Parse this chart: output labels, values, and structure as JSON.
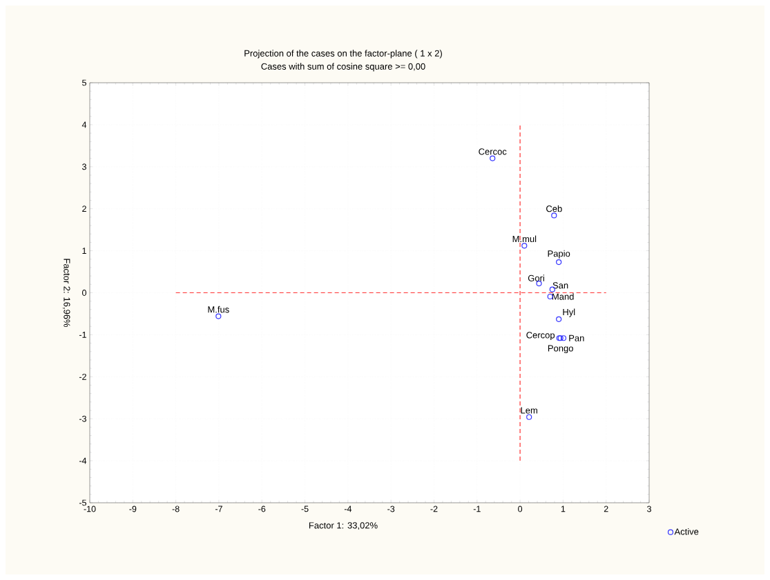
{
  "chart_data": {
    "type": "scatter",
    "title": "Projection of the cases on the factor-plane (  1 x   2)",
    "subtitle": "Cases with sum of cosine square >=  0,00",
    "xlabel": "Factor 1: 33,02%",
    "ylabel": "Factor 2: 16,96%",
    "xlim": [
      -10,
      3
    ],
    "ylim": [
      -5,
      5
    ],
    "xticks": [
      -10,
      -9,
      -8,
      -7,
      -6,
      -5,
      -4,
      -3,
      -2,
      -1,
      0,
      1,
      2,
      3
    ],
    "yticks": [
      -5,
      -4,
      -3,
      -2,
      -1,
      0,
      1,
      2,
      3,
      4,
      5
    ],
    "grid": true,
    "legend": "bottom right",
    "marker": "circle",
    "series": [
      {
        "type": "line",
        "color": "#ff3030",
        "line_style": "dashed",
        "marker": "none",
        "x": [
          -8,
          2
        ],
        "values": [
          0,
          0
        ]
      },
      {
        "type": "line",
        "color": "#ff3030",
        "line_style": "dashed",
        "marker": "none",
        "x": [
          0,
          0
        ],
        "values": [
          -4,
          4
        ]
      },
      {
        "name": "Active",
        "color": "#3333ff",
        "x": [
          -0.64,
          0.79,
          0.1,
          0.9,
          0.44,
          0.75,
          0.7,
          0.9,
          0.91,
          0.94,
          1.01,
          0.21,
          -7.01
        ],
        "values": [
          3.2,
          1.84,
          1.12,
          0.73,
          0.22,
          0.08,
          -0.09,
          -0.63,
          -1.08,
          -1.08,
          -1.08,
          -2.96,
          -0.56
        ]
      }
    ],
    "annotations": [
      {
        "text": "Cercoc",
        "x": -0.64,
        "y": 3.2
      },
      {
        "text": "Ceb",
        "x": 0.79,
        "y": 1.84
      },
      {
        "text": "M.mul",
        "x": 0.1,
        "y": 1.12
      },
      {
        "text": "Papio",
        "x": 0.9,
        "y": 0.73
      },
      {
        "text": "Gori",
        "x": 0.44,
        "y": 0.22
      },
      {
        "text": "San",
        "x": 0.75,
        "y": 0.08
      },
      {
        "text": "Mand",
        "x": 0.7,
        "y": -0.09
      },
      {
        "text": "Hyl",
        "x": 0.9,
        "y": -0.63
      },
      {
        "text": "Cercop",
        "x": 0.91,
        "y": -1.08
      },
      {
        "text": "Pongo",
        "x": 0.94,
        "y": -1.08
      },
      {
        "text": "Pan",
        "x": 1.01,
        "y": -1.08
      },
      {
        "text": "Lem",
        "x": 0.21,
        "y": -2.96
      },
      {
        "text": "M.fus",
        "x": -7.01,
        "y": -0.56
      }
    ]
  }
}
